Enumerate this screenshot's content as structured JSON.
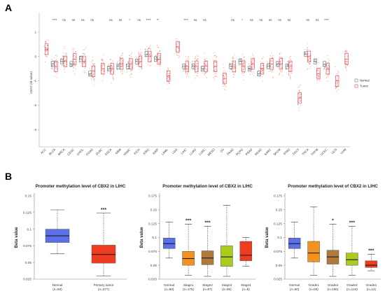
{
  "panel_a": {
    "label": "A",
    "ylabel": "CBX2 (M-value)",
    "yticks": [
      "1",
      "0",
      "-1",
      "-2",
      "-3"
    ],
    "legend": {
      "normal": "Normal",
      "tumor": "Tumor"
    },
    "colors": {
      "normal": "#6d7175",
      "tumor": "#e34545"
    }
  },
  "panel_b": {
    "label": "B",
    "colors": {
      "normal": "#5a6fe8",
      "tumor": "#ef3b1f",
      "stage1": "#f39220",
      "stage2": "#b07a3c",
      "stage3": "#a9cc1e",
      "stage4": "#ef3b1f",
      "grade1": "#f39220",
      "grade2": "#b07a3c",
      "grade3": "#a9cc1e",
      "grade4": "#ef3b1f"
    }
  },
  "chart_data": [
    {
      "type": "box",
      "categories": [
        "ACC",
        "BLCA",
        "BRCA",
        "CESC",
        "CHOL",
        "COAD",
        "DLBC",
        "ESCA",
        "GBM",
        "HNSC",
        "KICH",
        "KIRC",
        "KIRP",
        "LAML",
        "LGG",
        "LIHC",
        "LUAD",
        "LUSC",
        "MESO",
        "OV",
        "PAAD",
        "PCPG",
        "PRAD",
        "READ",
        "SARC",
        "SKCM",
        "STAD",
        "TGCT",
        "THCA",
        "THYM",
        "UCEC",
        "UCS",
        "UVM"
      ],
      "significance": [
        "",
        "****",
        "ns",
        "ns",
        "ns",
        "ns",
        "",
        "ns",
        "ns",
        "*",
        "ns",
        "****",
        "**",
        "",
        "",
        "****",
        "ns",
        "ns",
        "",
        "",
        "ns",
        "*",
        "ns",
        "ns",
        "ns",
        "ns",
        "ns",
        "",
        "ns",
        "ns",
        "****",
        "",
        ""
      ],
      "normal_median": [
        null,
        -0.3,
        -0.2,
        -0.3,
        -0.1,
        -0.7,
        null,
        -0.5,
        -0.4,
        -0.4,
        -0.2,
        0.1,
        -0.1,
        null,
        null,
        -0.4,
        -0.4,
        -0.5,
        null,
        null,
        -0.4,
        -0.2,
        -0.5,
        -0.7,
        -0.4,
        -0.3,
        -0.4,
        null,
        0.1,
        -0.2,
        -0.3,
        null,
        null
      ],
      "tumor_median": [
        0.3,
        -0.4,
        -0.2,
        -0.1,
        -0.2,
        -0.6,
        -0.5,
        -0.5,
        -0.3,
        -0.3,
        -0.2,
        0.0,
        -0.1,
        -0.8,
        0.4,
        -0.4,
        -0.4,
        -0.4,
        -0.4,
        -0.9,
        -0.4,
        -0.4,
        -0.3,
        -0.5,
        -0.3,
        -0.3,
        -0.4,
        -1.7,
        0.0,
        -0.7,
        -0.5,
        -1.0,
        -0.1
      ],
      "ylim": [
        -3.7,
        1.8
      ],
      "ylabel": "CBX2 (M-value)"
    },
    {
      "type": "box",
      "title": "Promoter methylation level of CBX2 in LIHC",
      "ylabel": "Beta value",
      "yticks": [
        "0.15",
        "0.125",
        "0.1",
        "0.075",
        "0.05",
        "0.025"
      ],
      "ylim": [
        0.025,
        0.15
      ],
      "groups": [
        {
          "label": "Normal",
          "n": "(n=50)",
          "min": 0.063,
          "q1": 0.08,
          "median": 0.09,
          "q3": 0.1,
          "max": 0.129,
          "sig": ""
        },
        {
          "label": "Primary tumor",
          "n": "(n=377)",
          "min": 0.03,
          "q1": 0.049,
          "median": 0.062,
          "q3": 0.076,
          "max": 0.124,
          "sig": "***"
        }
      ]
    },
    {
      "type": "box",
      "title": "Promoter methylation level of CBX2 in LIHC",
      "ylabel": "Beta value",
      "yticks": [
        "0.175",
        "0.15",
        "0.125",
        "0.1",
        "0.075",
        "0.05",
        "0.025"
      ],
      "ylim": [
        0.025,
        0.175
      ],
      "groups": [
        {
          "label": "Normal",
          "n": "(n=50)",
          "min": 0.063,
          "q1": 0.08,
          "median": 0.089,
          "q3": 0.099,
          "max": 0.128,
          "sig": ""
        },
        {
          "label": "Stage1",
          "n": "(n=175)",
          "min": 0.032,
          "q1": 0.05,
          "median": 0.062,
          "q3": 0.075,
          "max": 0.124,
          "sig": "***"
        },
        {
          "label": "Stage2",
          "n": "(n=87)",
          "min": 0.03,
          "q1": 0.051,
          "median": 0.063,
          "q3": 0.076,
          "max": 0.12,
          "sig": "***"
        },
        {
          "label": "Stage3",
          "n": "(n=86)",
          "min": 0.03,
          "q1": 0.048,
          "median": 0.065,
          "q3": 0.085,
          "max": 0.158,
          "sig": ""
        },
        {
          "label": "Stage4",
          "n": "(n=5)",
          "min": 0.048,
          "q1": 0.058,
          "median": 0.068,
          "q3": 0.093,
          "max": 0.1,
          "sig": ""
        }
      ]
    },
    {
      "type": "box",
      "title": "Promoter methylation level of CBX2 in LIHC",
      "ylabel": "Beta value",
      "yticks": [
        "0.175",
        "0.15",
        "0.125",
        "0.1",
        "0.075",
        "0.05",
        "0.025"
      ],
      "ylim": [
        0.025,
        0.175
      ],
      "groups": [
        {
          "label": "Normal",
          "n": "(n=50)",
          "min": 0.063,
          "q1": 0.08,
          "median": 0.089,
          "q3": 0.099,
          "max": 0.128,
          "sig": ""
        },
        {
          "label": "Grade1",
          "n": "(n=55)",
          "min": 0.032,
          "q1": 0.056,
          "median": 0.072,
          "q3": 0.093,
          "max": 0.155,
          "sig": ""
        },
        {
          "label": "Grade2",
          "n": "(n=180)",
          "min": 0.03,
          "q1": 0.052,
          "median": 0.065,
          "q3": 0.077,
          "max": 0.124,
          "sig": "*"
        },
        {
          "label": "Grade3",
          "n": "(n=124)",
          "min": 0.032,
          "q1": 0.05,
          "median": 0.06,
          "q3": 0.072,
          "max": 0.12,
          "sig": "***"
        },
        {
          "label": "Grade4",
          "n": "(n=13)",
          "min": 0.04,
          "q1": 0.046,
          "median": 0.05,
          "q3": 0.058,
          "max": 0.07,
          "sig": "***"
        }
      ]
    }
  ]
}
